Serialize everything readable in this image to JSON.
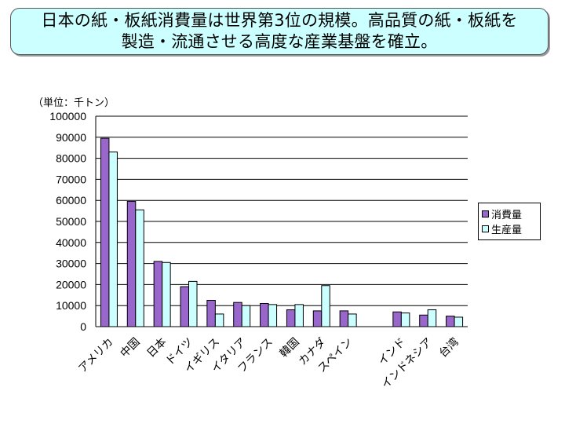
{
  "title": {
    "line1": "日本の紙・板紙消費量は世界第3位の規模。高品質の紙・板紙を",
    "line2": "製造・流通させる高度な産業基盤を確立。"
  },
  "unit_label": "（単位：千トン）",
  "colors": {
    "consumption": "#9966cc",
    "production": "#ccffff",
    "grid": "#000000"
  },
  "chart_data": {
    "type": "bar",
    "title": "",
    "xlabel": "",
    "ylabel": "",
    "unit": "千トン",
    "ylim": [
      0,
      100000
    ],
    "yticks": [
      0,
      10000,
      20000,
      30000,
      40000,
      50000,
      60000,
      70000,
      80000,
      90000,
      100000
    ],
    "grid": true,
    "legend_position": "right",
    "categories": [
      "アメリカ",
      "中国",
      "日本",
      "ドイツ",
      "イギリス",
      "イタリア",
      "フランス",
      "韓国",
      "カナダ",
      "スペイン",
      "",
      "インド",
      "インドネシア",
      "台湾"
    ],
    "series": [
      {
        "name": "消費量",
        "values": [
          89500,
          59500,
          31000,
          19000,
          12500,
          11500,
          11000,
          8000,
          7500,
          7500,
          null,
          7000,
          5500,
          5000
        ]
      },
      {
        "name": "生産量",
        "values": [
          83000,
          55500,
          30500,
          21500,
          6000,
          10000,
          10500,
          10500,
          19500,
          6000,
          null,
          6500,
          8000,
          4500
        ]
      }
    ]
  }
}
